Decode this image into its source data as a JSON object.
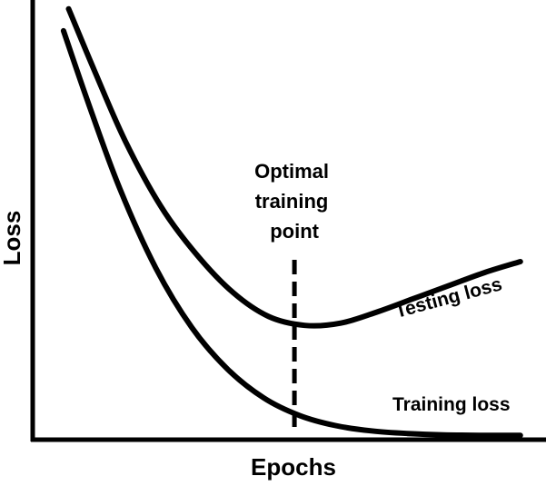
{
  "chart_data": {
    "type": "line",
    "xlabel": "Epochs",
    "ylabel": "Loss",
    "grid": false,
    "legend": "none",
    "xlim": [
      0,
      10
    ],
    "ylim": [
      0,
      10
    ],
    "series": [
      {
        "name": "Testing loss",
        "points": [
          [
            0.7,
            9.8
          ],
          [
            1.2,
            8.4
          ],
          [
            1.8,
            6.8
          ],
          [
            2.5,
            5.3
          ],
          [
            3.2,
            4.2
          ],
          [
            3.9,
            3.35
          ],
          [
            4.6,
            2.8
          ],
          [
            5.3,
            2.6
          ],
          [
            6.0,
            2.65
          ],
          [
            6.7,
            2.9
          ],
          [
            7.4,
            3.2
          ],
          [
            8.1,
            3.5
          ],
          [
            8.8,
            3.8
          ],
          [
            9.5,
            4.05
          ]
        ]
      },
      {
        "name": "Training loss",
        "points": [
          [
            0.6,
            9.3
          ],
          [
            1.1,
            7.6
          ],
          [
            1.7,
            5.7
          ],
          [
            2.4,
            3.9
          ],
          [
            3.1,
            2.55
          ],
          [
            3.8,
            1.6
          ],
          [
            4.5,
            0.95
          ],
          [
            5.2,
            0.55
          ],
          [
            5.9,
            0.32
          ],
          [
            6.6,
            0.2
          ],
          [
            7.3,
            0.14
          ],
          [
            8.0,
            0.11
          ],
          [
            8.7,
            0.1
          ],
          [
            9.5,
            0.1
          ]
        ]
      }
    ],
    "annotations": [
      {
        "text": [
          "Optimal",
          "training",
          "point"
        ],
        "x": 5.1,
        "style": "dashed-vertical"
      }
    ],
    "colors": {
      "line": "#000000",
      "background": "#ffffff"
    }
  }
}
